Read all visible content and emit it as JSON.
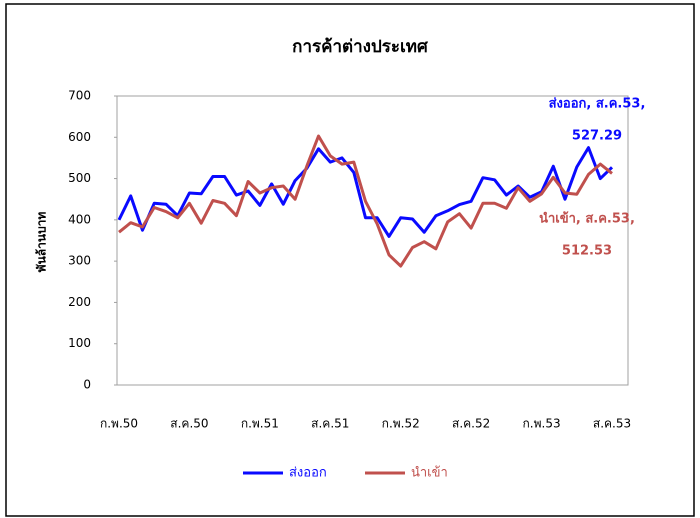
{
  "chart_data": {
    "type": "line",
    "title": "การค้าต่างประเทศ",
    "y_label": "พันล้านบาท",
    "categories": [
      "ก.พ.50",
      null,
      null,
      null,
      null,
      null,
      "ส.ค.50",
      null,
      null,
      null,
      null,
      null,
      "ก.พ.51",
      null,
      null,
      null,
      null,
      null,
      "ส.ค.51",
      null,
      null,
      null,
      null,
      null,
      "ก.พ.52",
      null,
      null,
      null,
      null,
      null,
      "ส.ค.52",
      null,
      null,
      null,
      null,
      null,
      "ก.พ.53",
      null,
      null,
      null,
      null,
      null,
      "ส.ค.53"
    ],
    "series": [
      {
        "name": "ส่งออก",
        "color": "#0a0aff",
        "values": [
          400,
          458,
          375,
          440,
          438,
          410,
          465,
          463,
          505,
          505,
          460,
          470,
          435,
          487,
          438,
          495,
          525,
          572,
          540,
          550,
          515,
          405,
          405,
          360,
          405,
          402,
          370,
          410,
          422,
          437,
          445,
          502,
          497,
          460,
          482,
          455,
          468,
          530,
          450,
          528,
          575,
          500,
          527.29
        ]
      },
      {
        "name": "นำเข้า",
        "color": "#c0504d",
        "values": [
          370,
          393,
          383,
          430,
          420,
          405,
          440,
          392,
          447,
          440,
          410,
          493,
          465,
          478,
          482,
          450,
          530,
          603,
          555,
          535,
          540,
          445,
          390,
          315,
          288,
          333,
          347,
          330,
          395,
          415,
          380,
          440,
          440,
          428,
          478,
          445,
          463,
          503,
          465,
          462,
          510,
          535,
          512.53
        ]
      }
    ],
    "ylim": [
      0,
      700
    ],
    "yticks": [
      0,
      100,
      200,
      300,
      400,
      500,
      600,
      700
    ],
    "grid": false,
    "legend": "bottom",
    "annotations": [
      {
        "lines": [
          "ส่งออก, ส.ค.53,",
          "527.29"
        ],
        "color": "#0a0aff"
      },
      {
        "lines": [
          "นำเข้า, ส.ค.53,",
          "512.53"
        ],
        "color": "#c0504d"
      }
    ]
  }
}
